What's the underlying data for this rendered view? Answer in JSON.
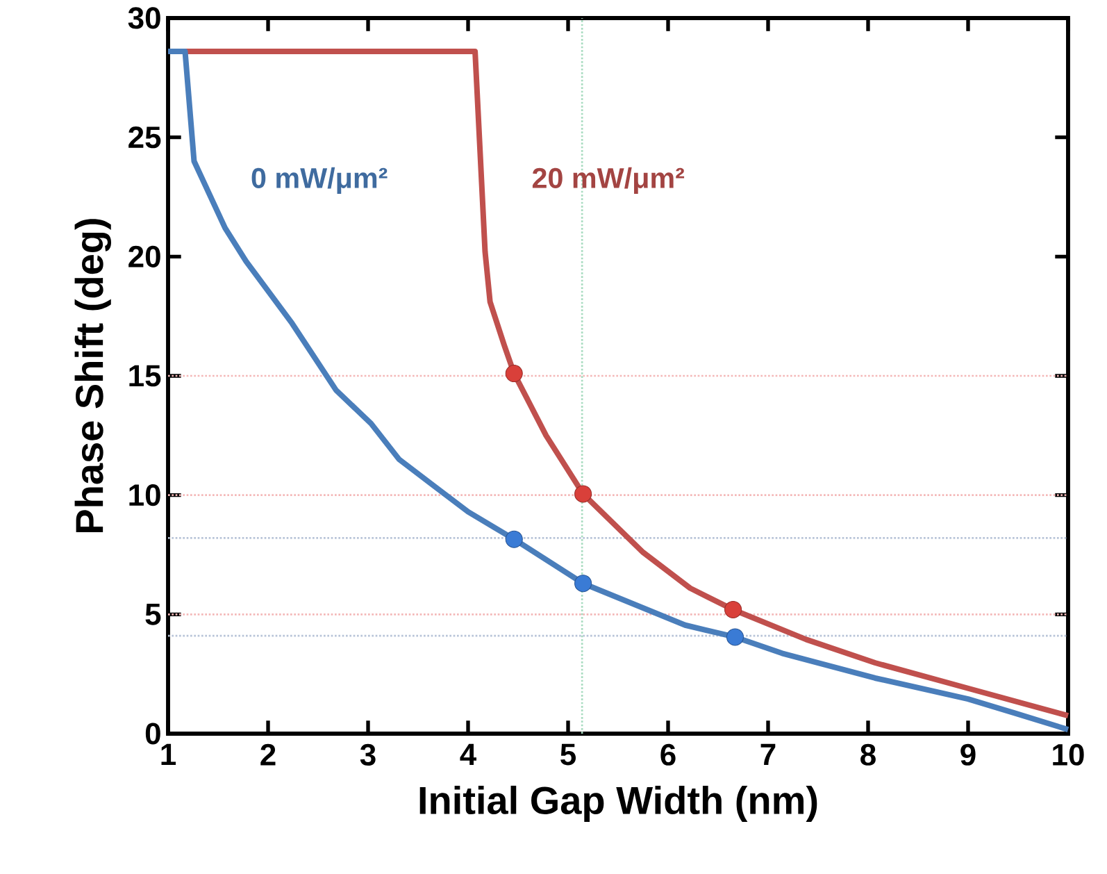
{
  "chart_data": {
    "type": "line",
    "xlabel": "Initial Gap Width (nm)",
    "ylabel": "Phase Shift (deg)",
    "xlim": [
      1,
      10
    ],
    "ylim": [
      0,
      30
    ],
    "xticks": [
      1,
      2,
      3,
      4,
      5,
      6,
      7,
      8,
      9,
      10
    ],
    "yticks": [
      0,
      5,
      10,
      15,
      20,
      25,
      30
    ],
    "grid": false,
    "line_style": "solid",
    "series": [
      {
        "name": "0 mW/μm²",
        "color": "#4a7ebb",
        "x": [
          1,
          1.17,
          1.26,
          1.57,
          1.78,
          2.24,
          2.68,
          3.03,
          3.31,
          3.67,
          4.0,
          4.46,
          5.15,
          6.17,
          6.67,
          7.14,
          8.07,
          9.0,
          9.46,
          10
        ],
        "values": [
          28.6,
          28.6,
          24.0,
          21.2,
          19.8,
          17.2,
          14.4,
          13.0,
          11.5,
          10.35,
          9.3,
          8.15,
          6.3,
          4.55,
          4.05,
          3.37,
          2.33,
          1.45,
          0.87,
          0.17
        ]
      },
      {
        "name": "20 mW/μm²",
        "color": "#c0504d",
        "x": [
          1,
          4.07,
          4.17,
          4.22,
          4.36,
          4.46,
          4.78,
          5.15,
          5.75,
          6.22,
          6.65,
          7.38,
          8.07,
          9.0,
          10
        ],
        "values": [
          28.6,
          28.6,
          20.2,
          18.1,
          16.3,
          15.1,
          12.5,
          10.05,
          7.6,
          6.1,
          5.2,
          3.95,
          2.97,
          1.9,
          0.75
        ]
      },
      {
        "type": "scatter",
        "color": "#3a7bd5",
        "x": [
          4.46,
          5.15,
          6.67
        ],
        "values": [
          8.15,
          6.3,
          4.05
        ]
      },
      {
        "type": "scatter",
        "color": "#d9403a",
        "x": [
          4.46,
          5.15,
          6.65
        ],
        "values": [
          15.1,
          10.05,
          5.2
        ]
      }
    ],
    "ref_lines": [
      {
        "axis": "y",
        "value": 15,
        "color": "#f4b8b8",
        "line_style": "dotted"
      },
      {
        "axis": "y",
        "value": 10,
        "color": "#f4b8b8",
        "line_style": "dotted"
      },
      {
        "axis": "y",
        "value": 8.2,
        "color": "#b8c4d8",
        "line_style": "dotted"
      },
      {
        "axis": "y",
        "value": 5,
        "color": "#f4b8b8",
        "line_style": "dotted"
      },
      {
        "axis": "y",
        "value": 4.1,
        "color": "#b8c4d8",
        "line_style": "dotted"
      },
      {
        "axis": "x",
        "value": 5.14,
        "color": "#a8dcc0",
        "line_style": "dotted"
      }
    ]
  }
}
